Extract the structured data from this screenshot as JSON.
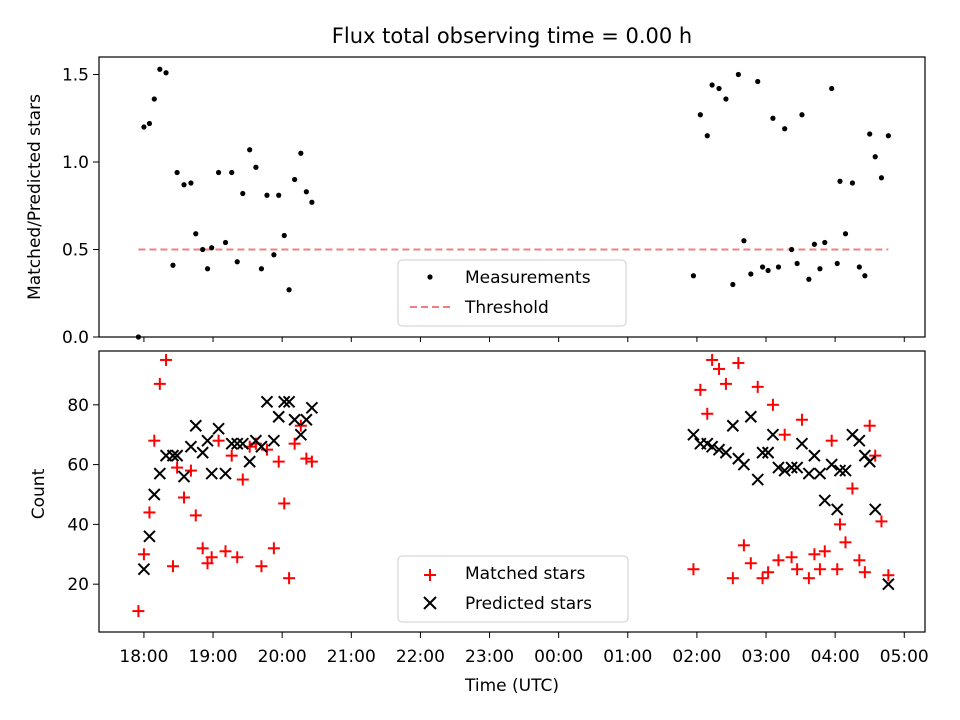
{
  "title": "Flux total observing time = 0.00 h",
  "chart_data": [
    {
      "type": "scatter",
      "ylabel": "Matched/Predicted stars",
      "ylim": [
        0,
        1.6
      ],
      "yticks": [
        0.0,
        0.5,
        1.0,
        1.5
      ],
      "grid": false,
      "legend_position": "lower-center",
      "x_units": "hours from 18:00 UTC",
      "series": [
        {
          "name": "Measurements",
          "marker": "dot",
          "color": "#000000",
          "points": [
            [
              -0.08,
              0.0
            ],
            [
              0.0,
              1.2
            ],
            [
              0.08,
              1.22
            ],
            [
              0.15,
              1.36
            ],
            [
              0.23,
              1.53
            ],
            [
              0.32,
              1.51
            ],
            [
              0.42,
              0.41
            ],
            [
              0.48,
              0.94
            ],
            [
              0.58,
              0.87
            ],
            [
              0.68,
              0.88
            ],
            [
              0.75,
              0.59
            ],
            [
              0.85,
              0.5
            ],
            [
              0.92,
              0.39
            ],
            [
              0.98,
              0.51
            ],
            [
              1.08,
              0.94
            ],
            [
              1.18,
              0.54
            ],
            [
              1.27,
              0.94
            ],
            [
              1.35,
              0.43
            ],
            [
              1.43,
              0.82
            ],
            [
              1.53,
              1.07
            ],
            [
              1.62,
              0.97
            ],
            [
              1.7,
              0.39
            ],
            [
              1.78,
              0.81
            ],
            [
              1.88,
              0.47
            ],
            [
              1.95,
              0.81
            ],
            [
              2.03,
              0.58
            ],
            [
              2.1,
              0.27
            ],
            [
              2.18,
              0.9
            ],
            [
              2.27,
              1.05
            ],
            [
              2.35,
              0.83
            ],
            [
              2.43,
              0.77
            ],
            [
              7.95,
              0.35
            ],
            [
              8.05,
              1.27
            ],
            [
              8.15,
              1.15
            ],
            [
              8.22,
              1.44
            ],
            [
              8.32,
              1.42
            ],
            [
              8.42,
              1.36
            ],
            [
              8.52,
              0.3
            ],
            [
              8.6,
              1.5
            ],
            [
              8.68,
              0.55
            ],
            [
              8.78,
              0.36
            ],
            [
              8.88,
              1.46
            ],
            [
              8.95,
              0.4
            ],
            [
              9.03,
              0.38
            ],
            [
              9.1,
              1.25
            ],
            [
              9.18,
              0.4
            ],
            [
              9.27,
              1.19
            ],
            [
              9.37,
              0.5
            ],
            [
              9.45,
              0.42
            ],
            [
              9.52,
              1.27
            ],
            [
              9.62,
              0.33
            ],
            [
              9.7,
              0.53
            ],
            [
              9.78,
              0.39
            ],
            [
              9.85,
              0.54
            ],
            [
              9.95,
              1.42
            ],
            [
              10.03,
              0.42
            ],
            [
              10.07,
              0.89
            ],
            [
              10.15,
              0.59
            ],
            [
              10.25,
              0.88
            ],
            [
              10.35,
              0.4
            ],
            [
              10.43,
              0.35
            ],
            [
              10.5,
              1.16
            ],
            [
              10.58,
              1.03
            ],
            [
              10.67,
              0.91
            ],
            [
              10.77,
              1.15
            ]
          ]
        },
        {
          "name": "Threshold",
          "style": "dashed",
          "color": "#f08080",
          "points": [
            [
              -0.08,
              0.5
            ],
            [
              10.77,
              0.5
            ]
          ]
        }
      ]
    },
    {
      "type": "scatter",
      "xlabel": "Time (UTC)",
      "ylabel": "Count",
      "ylim": [
        4,
        98
      ],
      "yticks": [
        20,
        40,
        60,
        80
      ],
      "xlim": [
        -0.65,
        11.3
      ],
      "xticks": [
        0,
        1,
        2,
        3,
        4,
        5,
        6,
        7,
        8,
        9,
        10,
        11
      ],
      "xticklabels": [
        "18:00",
        "19:00",
        "20:00",
        "21:00",
        "22:00",
        "23:00",
        "00:00",
        "01:00",
        "02:00",
        "03:00",
        "04:00",
        "05:00"
      ],
      "grid": false,
      "legend_position": "lower-center",
      "x_units": "hours from 18:00 UTC",
      "series": [
        {
          "name": "Matched stars",
          "marker": "plus",
          "color": "#ff0000",
          "points": [
            [
              -0.08,
              11
            ],
            [
              0.0,
              30
            ],
            [
              0.08,
              44
            ],
            [
              0.15,
              68
            ],
            [
              0.23,
              87
            ],
            [
              0.32,
              95
            ],
            [
              0.42,
              26
            ],
            [
              0.48,
              59
            ],
            [
              0.58,
              49
            ],
            [
              0.68,
              58
            ],
            [
              0.75,
              43
            ],
            [
              0.85,
              32
            ],
            [
              0.92,
              27
            ],
            [
              0.98,
              29
            ],
            [
              1.08,
              68
            ],
            [
              1.18,
              31
            ],
            [
              1.27,
              63
            ],
            [
              1.35,
              29
            ],
            [
              1.43,
              55
            ],
            [
              1.53,
              66
            ],
            [
              1.62,
              67
            ],
            [
              1.7,
              26
            ],
            [
              1.78,
              65
            ],
            [
              1.88,
              32
            ],
            [
              1.95,
              61
            ],
            [
              2.03,
              47
            ],
            [
              2.1,
              22
            ],
            [
              2.18,
              67
            ],
            [
              2.27,
              73
            ],
            [
              2.35,
              62
            ],
            [
              2.43,
              61
            ],
            [
              7.95,
              25
            ],
            [
              8.05,
              85
            ],
            [
              8.15,
              77
            ],
            [
              8.22,
              95
            ],
            [
              8.32,
              92
            ],
            [
              8.42,
              87
            ],
            [
              8.52,
              22
            ],
            [
              8.6,
              94
            ],
            [
              8.68,
              33
            ],
            [
              8.78,
              27
            ],
            [
              8.88,
              86
            ],
            [
              8.95,
              22
            ],
            [
              9.03,
              24
            ],
            [
              9.1,
              80
            ],
            [
              9.18,
              28
            ],
            [
              9.27,
              70
            ],
            [
              9.37,
              29
            ],
            [
              9.45,
              25
            ],
            [
              9.52,
              75
            ],
            [
              9.62,
              22
            ],
            [
              9.7,
              30
            ],
            [
              9.78,
              25
            ],
            [
              9.85,
              31
            ],
            [
              9.95,
              68
            ],
            [
              10.03,
              25
            ],
            [
              10.07,
              40
            ],
            [
              10.15,
              34
            ],
            [
              10.25,
              52
            ],
            [
              10.35,
              28
            ],
            [
              10.43,
              24
            ],
            [
              10.5,
              73
            ],
            [
              10.58,
              63
            ],
            [
              10.67,
              41
            ],
            [
              10.77,
              23
            ]
          ]
        },
        {
          "name": "Predicted stars",
          "marker": "x",
          "color": "#000000",
          "points": [
            [
              0.0,
              25
            ],
            [
              0.08,
              36
            ],
            [
              0.15,
              50
            ],
            [
              0.23,
              57
            ],
            [
              0.32,
              63
            ],
            [
              0.42,
              63
            ],
            [
              0.48,
              63
            ],
            [
              0.58,
              56
            ],
            [
              0.68,
              66
            ],
            [
              0.75,
              73
            ],
            [
              0.85,
              64
            ],
            [
              0.92,
              68
            ],
            [
              0.98,
              57
            ],
            [
              1.08,
              72
            ],
            [
              1.18,
              57
            ],
            [
              1.27,
              67
            ],
            [
              1.35,
              67
            ],
            [
              1.43,
              67
            ],
            [
              1.53,
              61
            ],
            [
              1.62,
              68
            ],
            [
              1.7,
              66
            ],
            [
              1.78,
              81
            ],
            [
              1.88,
              68
            ],
            [
              1.95,
              76
            ],
            [
              2.03,
              81
            ],
            [
              2.1,
              81
            ],
            [
              2.18,
              75
            ],
            [
              2.27,
              70
            ],
            [
              2.35,
              75
            ],
            [
              2.43,
              79
            ],
            [
              7.95,
              70
            ],
            [
              8.05,
              67
            ],
            [
              8.15,
              67
            ],
            [
              8.22,
              66
            ],
            [
              8.32,
              65
            ],
            [
              8.42,
              64
            ],
            [
              8.52,
              73
            ],
            [
              8.6,
              62
            ],
            [
              8.68,
              60
            ],
            [
              8.78,
              76
            ],
            [
              8.88,
              55
            ],
            [
              8.95,
              64
            ],
            [
              9.03,
              64
            ],
            [
              9.1,
              70
            ],
            [
              9.18,
              59
            ],
            [
              9.27,
              58
            ],
            [
              9.37,
              59
            ],
            [
              9.45,
              59
            ],
            [
              9.52,
              67
            ],
            [
              9.62,
              57
            ],
            [
              9.7,
              63
            ],
            [
              9.78,
              57
            ],
            [
              9.85,
              48
            ],
            [
              9.95,
              60
            ],
            [
              10.03,
              45
            ],
            [
              10.07,
              58
            ],
            [
              10.15,
              58
            ],
            [
              10.25,
              70
            ],
            [
              10.35,
              68
            ],
            [
              10.43,
              63
            ],
            [
              10.5,
              61
            ],
            [
              10.58,
              45
            ],
            [
              10.77,
              20
            ]
          ]
        }
      ]
    }
  ]
}
